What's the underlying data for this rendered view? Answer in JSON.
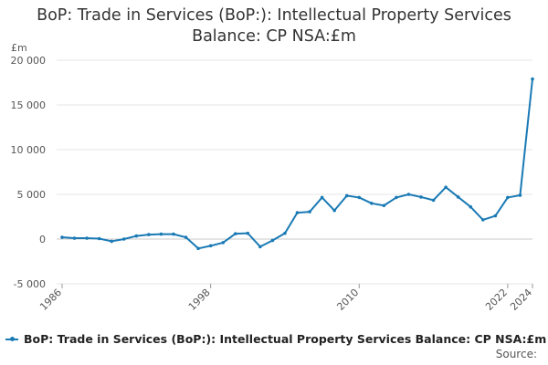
{
  "title_line1": "BoP: Trade in Services (BoP:): Intellectual Property Services",
  "title_line2": "Balance: CP NSA:£m",
  "source_label": "Source:",
  "colors": {
    "series": "#1a7ab5",
    "grid": "#e6e6e6",
    "zero": "#c8c8c8"
  },
  "chart_data": {
    "type": "line",
    "title": "BoP: Trade in Services (BoP:): Intellectual Property Services Balance: CP NSA:£m",
    "ylabel": "£m",
    "ylim": [
      -5000,
      20000
    ],
    "yticks": [
      -5000,
      0,
      5000,
      10000,
      15000,
      20000
    ],
    "ytick_labels": [
      "-5 000",
      "0",
      "5 000",
      "10 000",
      "15 000",
      "20 000"
    ],
    "xlim": [
      1986,
      2024
    ],
    "xticks": [
      1986,
      1998,
      2010,
      2022,
      2024
    ],
    "xtick_labels": [
      "1986",
      "1998",
      "2010",
      "2022",
      "2024"
    ],
    "grid": true,
    "legend": "bottom-left",
    "series": [
      {
        "name": "BoP: Trade in Services (BoP:): Intellectual Property Services Balance: CP NSA:£m",
        "x": [
          1986,
          1987,
          1988,
          1989,
          1990,
          1991,
          1992,
          1993,
          1994,
          1995,
          1996,
          1997,
          1998,
          1999,
          2000,
          2001,
          2002,
          2003,
          2004,
          2005,
          2006,
          2007,
          2008,
          2009,
          2010,
          2011,
          2012,
          2013,
          2014,
          2015,
          2016,
          2017,
          2018,
          2019,
          2020,
          2021,
          2022,
          2023,
          2024
        ],
        "values": [
          200,
          100,
          100,
          50,
          -250,
          0,
          350,
          500,
          550,
          550,
          200,
          -1050,
          -750,
          -400,
          600,
          650,
          -850,
          -150,
          650,
          2950,
          3050,
          4650,
          3200,
          4850,
          4650,
          4000,
          3750,
          4650,
          5000,
          4700,
          4350,
          5800,
          4700,
          3600,
          2150,
          2600,
          4650,
          4900,
          17900
        ]
      }
    ]
  }
}
